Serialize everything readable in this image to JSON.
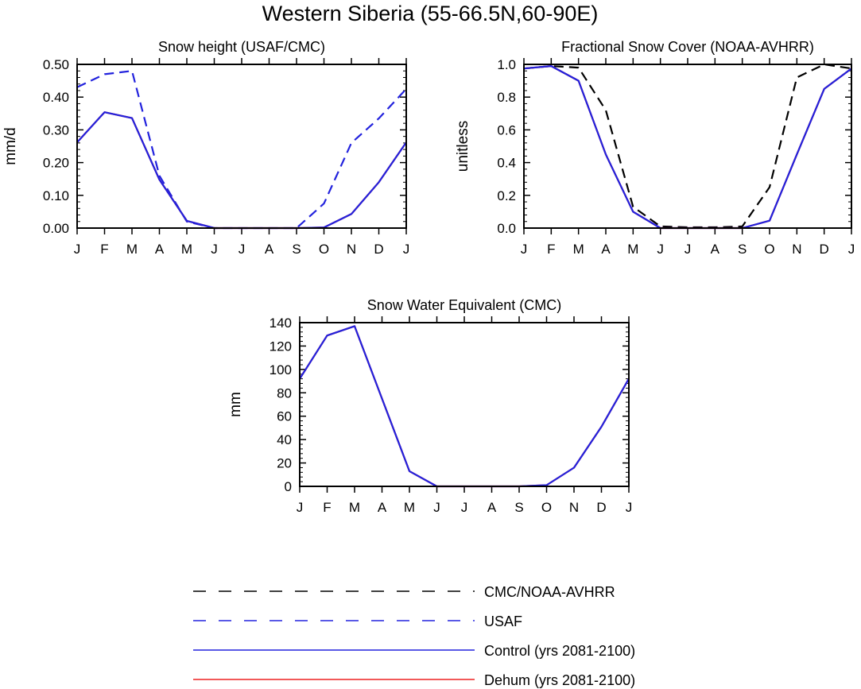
{
  "figure_title": "Western Siberia (55-66.5N,60-90E)",
  "colors": {
    "obs": "#000000",
    "usaf": "#2222dd",
    "control": "#2222dd",
    "dehum": "#ee2222"
  },
  "legend": [
    {
      "key": "obs",
      "label": "CMC/NOAA-AVHRR",
      "style": "dashed",
      "color": "#000000"
    },
    {
      "key": "usaf",
      "label": "USAF",
      "style": "dashed",
      "color": "#2222dd"
    },
    {
      "key": "control",
      "label": "Control (yrs 2081-2100)",
      "style": "solid",
      "color": "#2222dd"
    },
    {
      "key": "dehum",
      "label": "Dehum (yrs 2081-2100)",
      "style": "solid",
      "color": "#ee2222"
    }
  ],
  "chart_data": [
    {
      "type": "line",
      "title": "Snow height (USAF/CMC)",
      "xlabel": "",
      "ylabel": "mm/d",
      "categories": [
        "J",
        "F",
        "M",
        "A",
        "M",
        "J",
        "J",
        "A",
        "S",
        "O",
        "N",
        "D",
        "J"
      ],
      "ylim": [
        0,
        0.5
      ],
      "yticks": [
        "0.00",
        "0.10",
        "0.20",
        "0.30",
        "0.40",
        "0.50"
      ],
      "series": [
        {
          "key": "usaf",
          "name": "USAF",
          "style": "dashed",
          "color": "#2222dd",
          "values": [
            0.43,
            0.47,
            0.48,
            0.16,
            0.02,
            0.0,
            0.0,
            0.0,
            0.0,
            0.075,
            0.26,
            0.335,
            0.425
          ]
        },
        {
          "key": "dehum",
          "name": "Dehum (yrs 2081-2100)",
          "style": "solid",
          "color": "#ee2222",
          "values": [
            0.262,
            0.354,
            0.336,
            0.148,
            0.022,
            0.0,
            0.0,
            0.0,
            0.0,
            0.002,
            0.043,
            0.14,
            0.262
          ]
        },
        {
          "key": "control",
          "name": "Control (yrs 2081-2100)",
          "style": "solid",
          "color": "#2222dd",
          "values": [
            0.262,
            0.354,
            0.336,
            0.148,
            0.022,
            0.0,
            0.0,
            0.0,
            0.0,
            0.002,
            0.043,
            0.14,
            0.262
          ]
        }
      ]
    },
    {
      "type": "line",
      "title": "Fractional Snow Cover (NOAA-AVHRR)",
      "xlabel": "",
      "ylabel": "unitless",
      "categories": [
        "J",
        "F",
        "M",
        "A",
        "M",
        "J",
        "J",
        "A",
        "S",
        "O",
        "N",
        "D",
        "J"
      ],
      "ylim": [
        0,
        1.0
      ],
      "yticks": [
        "0.0",
        "0.2",
        "0.4",
        "0.6",
        "0.8",
        "1.0"
      ],
      "series": [
        {
          "key": "obs",
          "name": "CMC/NOAA-AVHRR",
          "style": "dashed",
          "color": "#000000",
          "values": [
            0.975,
            0.99,
            0.98,
            0.72,
            0.13,
            0.01,
            0.005,
            0.005,
            0.01,
            0.25,
            0.92,
            1.0,
            0.975
          ]
        },
        {
          "key": "dehum",
          "name": "Dehum (yrs 2081-2100)",
          "style": "solid",
          "color": "#ee2222",
          "values": [
            0.975,
            0.99,
            0.9,
            0.45,
            0.1,
            0.0,
            0.0,
            0.0,
            0.0,
            0.045,
            0.45,
            0.85,
            0.975
          ]
        },
        {
          "key": "control",
          "name": "Control (yrs 2081-2100)",
          "style": "solid",
          "color": "#2222dd",
          "values": [
            0.975,
            0.99,
            0.9,
            0.45,
            0.1,
            0.0,
            0.0,
            0.0,
            0.0,
            0.045,
            0.45,
            0.85,
            0.975
          ]
        }
      ]
    },
    {
      "type": "line",
      "title": "Snow Water Equivalent (CMC)",
      "xlabel": "",
      "ylabel": "mm",
      "categories": [
        "J",
        "F",
        "M",
        "A",
        "M",
        "J",
        "J",
        "A",
        "S",
        "O",
        "N",
        "D",
        "J"
      ],
      "ylim": [
        0,
        140
      ],
      "yticks": [
        "0",
        "20",
        "40",
        "60",
        "80",
        "100",
        "120",
        "140"
      ],
      "series": [
        {
          "key": "dehum",
          "name": "Dehum (yrs 2081-2100)",
          "style": "solid",
          "color": "#ee2222",
          "values": [
            92,
            129,
            137,
            75,
            13,
            0,
            0,
            0,
            0,
            1,
            16,
            51,
            92
          ]
        },
        {
          "key": "control",
          "name": "Control (yrs 2081-2100)",
          "style": "solid",
          "color": "#2222dd",
          "values": [
            92,
            129,
            137,
            75,
            13,
            0,
            0,
            0,
            0,
            1,
            16,
            51,
            92
          ]
        }
      ]
    }
  ]
}
